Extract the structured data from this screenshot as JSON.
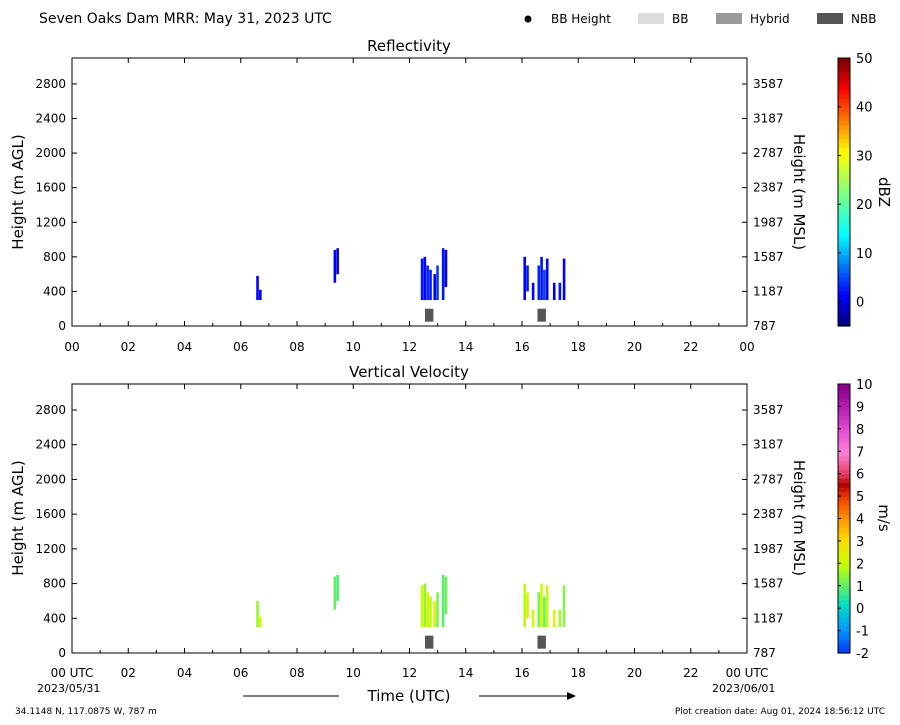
{
  "header": {
    "title": "Seven Oaks Dam MRR:  May 31, 2023 UTC",
    "legend": [
      {
        "label": "BB Height",
        "marker": "dot",
        "color": "#000000"
      },
      {
        "label": "BB",
        "marker": "box",
        "color": "#dcdcdc"
      },
      {
        "label": "Hybrid",
        "marker": "box",
        "color": "#999999"
      },
      {
        "label": "NBB",
        "marker": "box",
        "color": "#555555"
      }
    ]
  },
  "footer": {
    "location": "34.1148 N, 117.0875 W, 787 m",
    "created": "Plot creation date: Aug 01, 2024 18:56:12 UTC",
    "xaxis_title": "Time (UTC)",
    "start_date": "2023/05/31",
    "end_date": "2023/06/01"
  },
  "chart_data": [
    {
      "type": "heatmap",
      "title": "Reflectivity",
      "xlabel": "",
      "ylabel": "Height (m AGL)",
      "ylabel_right": "Height (m MSL)",
      "xlim": [
        0,
        24
      ],
      "ylim": [
        0,
        3100
      ],
      "x_ticks": [
        "00",
        "02",
        "04",
        "06",
        "08",
        "10",
        "12",
        "14",
        "16",
        "18",
        "20",
        "22",
        "00"
      ],
      "y_ticks": [
        0,
        400,
        800,
        1200,
        1600,
        2000,
        2400,
        2800
      ],
      "y_ticks_right": [
        787,
        1187,
        1587,
        1987,
        2387,
        2787,
        3187,
        3587
      ],
      "colorbar": {
        "label": "dBZ",
        "min": -5,
        "max": 50,
        "ticks": [
          0,
          10,
          20,
          30,
          40,
          50
        ],
        "colormap": "jet"
      },
      "bright_band": [
        {
          "start": 12.55,
          "end": 12.85,
          "height_range": [
            50,
            200
          ],
          "class": "NBB"
        },
        {
          "start": 16.55,
          "end": 16.85,
          "height_range": [
            50,
            200
          ],
          "class": "NBB"
        }
      ],
      "echoes": [
        {
          "t": 6.55,
          "h0": 300,
          "h1": 580,
          "v": 1
        },
        {
          "t": 6.65,
          "h0": 300,
          "h1": 420,
          "v": 0
        },
        {
          "t": 9.3,
          "h0": 500,
          "h1": 880,
          "v": 1
        },
        {
          "t": 9.4,
          "h0": 600,
          "h1": 900,
          "v": 0
        },
        {
          "t": 12.4,
          "h0": 300,
          "h1": 780,
          "v": 2
        },
        {
          "t": 12.5,
          "h0": 300,
          "h1": 800,
          "v": 1
        },
        {
          "t": 12.6,
          "h0": 300,
          "h1": 700,
          "v": 3
        },
        {
          "t": 12.7,
          "h0": 300,
          "h1": 650,
          "v": 2
        },
        {
          "t": 12.85,
          "h0": 300,
          "h1": 600,
          "v": 1
        },
        {
          "t": 12.95,
          "h0": 300,
          "h1": 700,
          "v": 4
        },
        {
          "t": 13.15,
          "h0": 300,
          "h1": 900,
          "v": 2
        },
        {
          "t": 13.25,
          "h0": 450,
          "h1": 880,
          "v": 1
        },
        {
          "t": 16.05,
          "h0": 300,
          "h1": 800,
          "v": 1
        },
        {
          "t": 16.15,
          "h0": 400,
          "h1": 700,
          "v": 2
        },
        {
          "t": 16.35,
          "h0": 300,
          "h1": 500,
          "v": 1
        },
        {
          "t": 16.55,
          "h0": 300,
          "h1": 700,
          "v": 3
        },
        {
          "t": 16.65,
          "h0": 300,
          "h1": 800,
          "v": 2
        },
        {
          "t": 16.75,
          "h0": 300,
          "h1": 650,
          "v": 4
        },
        {
          "t": 16.85,
          "h0": 300,
          "h1": 780,
          "v": 1
        },
        {
          "t": 17.1,
          "h0": 300,
          "h1": 500,
          "v": 0
        },
        {
          "t": 17.3,
          "h0": 300,
          "h1": 500,
          "v": 2
        },
        {
          "t": 17.45,
          "h0": 300,
          "h1": 780,
          "v": 1
        }
      ]
    },
    {
      "type": "heatmap",
      "title": "Vertical Velocity",
      "xlabel": "Time (UTC)",
      "ylabel": "Height (m AGL)",
      "ylabel_right": "Height (m MSL)",
      "xlim": [
        0,
        24
      ],
      "ylim": [
        0,
        3100
      ],
      "x_ticks": [
        "00 UTC",
        "02",
        "04",
        "06",
        "08",
        "10",
        "12",
        "14",
        "16",
        "18",
        "20",
        "22",
        "00 UTC"
      ],
      "y_ticks": [
        0,
        400,
        800,
        1200,
        1600,
        2000,
        2400,
        2800
      ],
      "y_ticks_right": [
        787,
        1187,
        1587,
        1987,
        2387,
        2787,
        3187,
        3587
      ],
      "colorbar": {
        "label": "m/s",
        "min": -2,
        "max": 10,
        "ticks": [
          -2,
          -1,
          0,
          1,
          2,
          3,
          4,
          5,
          6,
          7,
          8,
          9,
          10
        ],
        "colormap": "velocity"
      },
      "bright_band": [
        {
          "start": 12.55,
          "end": 12.85,
          "height_range": [
            50,
            200
          ],
          "class": "NBB"
        },
        {
          "start": 16.55,
          "end": 16.85,
          "height_range": [
            50,
            200
          ],
          "class": "NBB"
        }
      ],
      "echoes": [
        {
          "t": 6.55,
          "h0": 300,
          "h1": 600,
          "v": 1.5
        },
        {
          "t": 6.65,
          "h0": 300,
          "h1": 420,
          "v": 2.2
        },
        {
          "t": 9.3,
          "h0": 500,
          "h1": 880,
          "v": 1.0
        },
        {
          "t": 9.4,
          "h0": 600,
          "h1": 900,
          "v": 0.8
        },
        {
          "t": 12.4,
          "h0": 300,
          "h1": 780,
          "v": 2.0
        },
        {
          "t": 12.5,
          "h0": 300,
          "h1": 800,
          "v": 1.4
        },
        {
          "t": 12.6,
          "h0": 300,
          "h1": 700,
          "v": 2.4
        },
        {
          "t": 12.7,
          "h0": 300,
          "h1": 650,
          "v": 1.8
        },
        {
          "t": 12.85,
          "h0": 300,
          "h1": 600,
          "v": 2.2
        },
        {
          "t": 12.95,
          "h0": 300,
          "h1": 700,
          "v": 1.2
        },
        {
          "t": 13.15,
          "h0": 300,
          "h1": 900,
          "v": 0.9
        },
        {
          "t": 13.25,
          "h0": 450,
          "h1": 880,
          "v": 1.1
        },
        {
          "t": 16.05,
          "h0": 300,
          "h1": 800,
          "v": 1.8
        },
        {
          "t": 16.15,
          "h0": 400,
          "h1": 700,
          "v": 2.3
        },
        {
          "t": 16.35,
          "h0": 300,
          "h1": 500,
          "v": 2.0
        },
        {
          "t": 16.55,
          "h0": 300,
          "h1": 700,
          "v": 1.2
        },
        {
          "t": 16.65,
          "h0": 300,
          "h1": 800,
          "v": 2.2
        },
        {
          "t": 16.75,
          "h0": 300,
          "h1": 650,
          "v": 1.0
        },
        {
          "t": 16.85,
          "h0": 300,
          "h1": 780,
          "v": 1.9
        },
        {
          "t": 17.1,
          "h0": 300,
          "h1": 500,
          "v": 2.4
        },
        {
          "t": 17.3,
          "h0": 300,
          "h1": 500,
          "v": 1.6
        },
        {
          "t": 17.45,
          "h0": 300,
          "h1": 780,
          "v": 1.3
        }
      ]
    }
  ]
}
